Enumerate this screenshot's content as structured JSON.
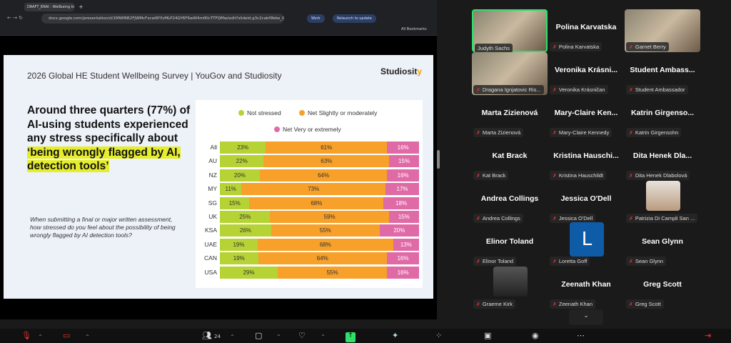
{
  "browser": {
    "tab_title": "DRAFT_ENAI - Wellbeing ki",
    "url": "docs.google.com/presentation/d/1MWfRB2FJWMcFxcwWYIzMLP24GY6F6wW4mfKlcTTFQMw/edit?slideid.g3c2cabf9bbe_0_481#slideid.g...",
    "profile": "Work",
    "relaunch": "Relaunch to update",
    "bookmarks": "All Bookmarks"
  },
  "slide": {
    "title": "2026 Global HE Student Wellbeing Survey | YouGov and Studiosity",
    "logo": "Studiosity",
    "headline_plain": "Around three quarters (77%) of AI-using students experienced any stress specifically about ",
    "headline_highlight": "‘being wrongly flagged by AI, detection tools’",
    "question": "When submitting a final or major written assessment, how stressed do you feel about the possibility of being wrongly flagged by AI detection tools?"
  },
  "chart_data": {
    "type": "bar",
    "orientation": "horizontal",
    "stacked": true,
    "categories": [
      "All",
      "AU",
      "NZ",
      "MY",
      "SG",
      "UK",
      "KSA",
      "UAE",
      "CAN",
      "USA"
    ],
    "series": [
      {
        "name": "Not stressed",
        "color": "#b5d334",
        "values": [
          23,
          22,
          20,
          11,
          15,
          25,
          26,
          19,
          19,
          29
        ]
      },
      {
        "name": "Net Slightly or moderately",
        "color": "#f7a02a",
        "values": [
          61,
          63,
          64,
          73,
          68,
          59,
          55,
          68,
          64,
          55
        ]
      },
      {
        "name": "Net Very or extremely",
        "color": "#e06aa6",
        "values": [
          16,
          15,
          16,
          17,
          18,
          15,
          20,
          13,
          16,
          16
        ]
      }
    ],
    "legend": "top",
    "unit": "%"
  },
  "participants": [
    {
      "name": "Judyth Sachs",
      "tile": "video",
      "active": true
    },
    {
      "name": "Polina Karvatska",
      "tile": "name"
    },
    {
      "name": "Garnet Berry",
      "tile": "video"
    },
    {
      "name": "Dragana Ignjatovic Ris...",
      "tile": "video"
    },
    {
      "name": "Veronika Krásničan",
      "tile": "name",
      "display": "Veronika Krásni..."
    },
    {
      "name": "Student Ambassador",
      "tile": "name",
      "display": "Student Ambass..."
    },
    {
      "name": "Marta Zizienová",
      "tile": "name"
    },
    {
      "name": "Mary-Claire Kennedy",
      "tile": "name",
      "display": "Mary-Claire Ken..."
    },
    {
      "name": "Katrin Girgensohn",
      "tile": "name",
      "display": "Katrin Girgenso..."
    },
    {
      "name": "Kat Brack",
      "tile": "name"
    },
    {
      "name": "Kristina Hauschildt",
      "tile": "name",
      "display": "Kristina Hauschi..."
    },
    {
      "name": "Dita Henek Dlabolová",
      "tile": "name",
      "display": "Dita Henek Dla..."
    },
    {
      "name": "Andrea Collings",
      "tile": "name"
    },
    {
      "name": "Jessica O'Dell",
      "tile": "name"
    },
    {
      "name": "Patrizia Di Campli San ...",
      "tile": "photo"
    },
    {
      "name": "Elinor Toland",
      "tile": "name"
    },
    {
      "name": "Loretta Goff",
      "tile": "avatar",
      "initial": "L"
    },
    {
      "name": "Sean Glynn",
      "tile": "name"
    },
    {
      "name": "Graeme Kirk",
      "tile": "photo"
    },
    {
      "name": "Zeenath Khan",
      "tile": "name"
    },
    {
      "name": "Greg Scott",
      "tile": "name"
    }
  ],
  "toolbar": {
    "participants_count": "24",
    "icons": [
      "mic-muted-icon",
      "video-off-icon",
      "participants-icon",
      "chat-icon",
      "react-icon",
      "share-icon",
      "ai-companion-icon",
      "apps-icon",
      "whiteboard-icon",
      "record-icon",
      "more-icon",
      "leave-icon"
    ]
  },
  "colors": {
    "active_speaker": "#2ee06a",
    "avatar": "#0e5ba8"
  }
}
